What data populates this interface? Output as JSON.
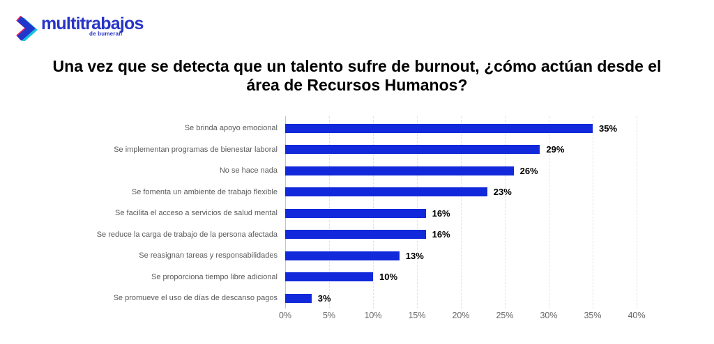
{
  "logo": {
    "brand": "multitrabajos",
    "sub_brand": "de bumeran",
    "brand_color": "#2734c8",
    "icon_colors": {
      "magenta": "#e52a5f",
      "blue": "#2336cb",
      "cyan": "#19c0e0"
    }
  },
  "title": "Una vez que se detecta que un talento sufre de burnout, ¿cómo actúan desde el área de Recursos Humanos?",
  "chart_data": {
    "type": "bar",
    "orientation": "horizontal",
    "title": "Una vez que se detecta que un talento sufre de burnout, ¿cómo actúan desde el área de Recursos Humanos?",
    "categories": [
      "Se brinda apoyo emocional",
      "Se implementan programas de bienestar laboral",
      "No se hace nada",
      "Se fomenta un ambiente de trabajo flexible",
      "Se facilita el acceso a servicios de salud mental",
      "Se reduce la carga de trabajo de la persona afectada",
      "Se reasignan tareas y responsabilidades",
      "Se proporciona tiempo libre adicional",
      "Se promueve el uso de días de descanso pagos"
    ],
    "values": [
      35,
      29,
      26,
      23,
      16,
      16,
      13,
      10,
      3
    ],
    "value_labels": [
      "35%",
      "29%",
      "26%",
      "23%",
      "16%",
      "16%",
      "13%",
      "10%",
      "3%"
    ],
    "xlabel": "",
    "ylabel": "",
    "xlim": [
      0,
      40
    ],
    "x_ticks": [
      "0%",
      "5%",
      "10%",
      "15%",
      "20%",
      "25%",
      "30%",
      "35%",
      "40%"
    ],
    "grid": "vertical-dashed",
    "legend": "none",
    "bar_color": "#1129da",
    "category_label_color": "#5a5a5a",
    "value_label_color": "#000000",
    "axis_tick_color": "#666666"
  }
}
